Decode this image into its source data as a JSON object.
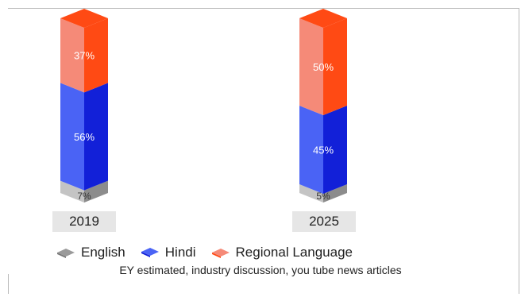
{
  "chart_data": {
    "type": "bar",
    "stacked": true,
    "categories": [
      "2019",
      "2025"
    ],
    "series": [
      {
        "name": "English",
        "values": [
          7,
          5
        ],
        "labels": [
          "7%",
          "5%"
        ],
        "color": "#8c8c8c"
      },
      {
        "name": "Hindi",
        "values": [
          56,
          45
        ],
        "labels": [
          "56%",
          "45%"
        ],
        "color": "#1f35e0"
      },
      {
        "name": "Regional Language",
        "values": [
          37,
          50
        ],
        "labels": [
          "37%",
          "50%"
        ],
        "color": "#ff5a2a"
      }
    ],
    "legend_placement": "bottom",
    "source": "EY estimated, industry discussion, you tube news articles"
  },
  "colors": {
    "english_front": "#c4c4c4",
    "english_side": "#8c8c8c",
    "hindi_front": "#4a63f5",
    "hindi_side": "#1220d8",
    "regional_front": "#f58a78",
    "regional_side": "#ff4a14"
  }
}
